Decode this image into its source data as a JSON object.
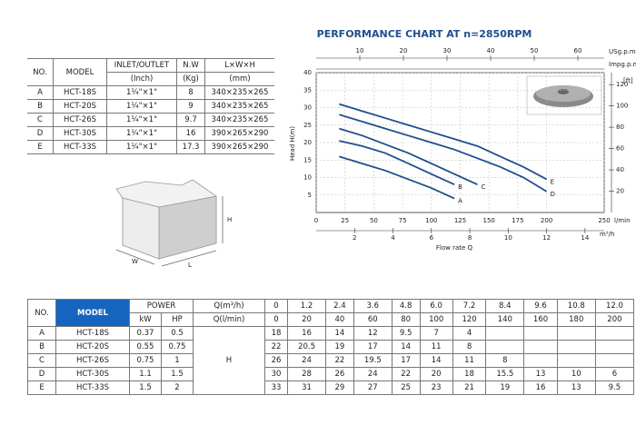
{
  "spec_table": {
    "headers": {
      "no": "NO.",
      "model": "MODEL",
      "inlet": "INLET/OUTLET",
      "inlet_unit": "(Inch)",
      "nw": "N.W",
      "nw_unit": "(Kg)",
      "dim": "L×W×H",
      "dim_unit": "(mm)"
    },
    "rows": [
      {
        "no": "A",
        "model": "HCT-18S",
        "inlet": "1¼\"×1\"",
        "nw": "8",
        "dim": "340×235×265"
      },
      {
        "no": "B",
        "model": "HCT-20S",
        "inlet": "1¼\"×1\"",
        "nw": "9",
        "dim": "340×235×265"
      },
      {
        "no": "C",
        "model": "HCT-26S",
        "inlet": "1¼\"×1\"",
        "nw": "9.7",
        "dim": "340×235×265"
      },
      {
        "no": "D",
        "model": "HCT-30S",
        "inlet": "1¼\"×1\"",
        "nw": "16",
        "dim": "390×265×290"
      },
      {
        "no": "E",
        "model": "HCT-33S",
        "inlet": "1¼\"×1\"",
        "nw": "17.3",
        "dim": "390×265×290"
      }
    ]
  },
  "box_labels": {
    "h": "H",
    "w": "W",
    "l": "L"
  },
  "chart_data": {
    "type": "line",
    "title": "PERFORMANCE CHART AT n=2850RPM",
    "y_label": "Head H(m)",
    "x_label": "Flow rate Q",
    "x_unit": "l/min",
    "x2_unit": "m³/h",
    "top_unit": "USg.p.m",
    "top2_unit": "Impg.p.m",
    "y2_unit": "[ft]",
    "xlim": [
      0,
      250
    ],
    "xticks": [
      0,
      25,
      50,
      75,
      100,
      125,
      150,
      175,
      200,
      250
    ],
    "ylim": [
      0,
      40
    ],
    "yticks": [
      5,
      10,
      15,
      20,
      25,
      30,
      35,
      40
    ],
    "x2lim": [
      0,
      15
    ],
    "x2ticks": [
      2,
      4,
      6,
      8,
      10,
      12,
      14
    ],
    "toplim": [
      0,
      66.04
    ],
    "topticks": [
      10,
      20,
      30,
      40,
      50,
      60
    ],
    "y2lim": [
      0,
      131.23
    ],
    "y2ticks": [
      20,
      40,
      60,
      80,
      100,
      120
    ],
    "grid": true,
    "color": "#1f4e8c",
    "x": [
      20,
      40,
      60,
      80,
      100,
      120,
      140,
      160,
      180,
      200
    ],
    "series": [
      {
        "name": "A",
        "values": [
          16,
          14,
          12,
          9.5,
          7,
          4,
          null,
          null,
          null,
          null
        ]
      },
      {
        "name": "B",
        "values": [
          20.5,
          19,
          17,
          14,
          11,
          8,
          null,
          null,
          null,
          null
        ]
      },
      {
        "name": "C",
        "values": [
          24,
          22,
          19.5,
          17,
          14,
          11,
          8,
          null,
          null,
          null
        ]
      },
      {
        "name": "D",
        "values": [
          28,
          26,
          24,
          22,
          20,
          18,
          15.5,
          13,
          10,
          6
        ]
      },
      {
        "name": "E",
        "values": [
          31,
          29,
          27,
          25,
          23,
          21,
          19,
          16,
          13,
          9.5
        ]
      }
    ]
  },
  "perf_table": {
    "headers": {
      "no": "NO.",
      "model": "MODEL",
      "power": "POWER",
      "kw": "kW",
      "hp": "HP",
      "q_m3h": "Q(m³/h)",
      "q_lmin": "Q(l/min)"
    },
    "q_m3h": [
      "0",
      "1.2",
      "2.4",
      "3.6",
      "4.8",
      "6.0",
      "7.2",
      "8.4",
      "9.6",
      "10.8",
      "12.0"
    ],
    "q_lmin": [
      "0",
      "20",
      "40",
      "60",
      "80",
      "100",
      "120",
      "140",
      "160",
      "180",
      "200"
    ],
    "head_symbol": "H",
    "rows": [
      {
        "no": "A",
        "model": "HCT-18S",
        "kw": "0.37",
        "hp": "0.5",
        "heads": [
          "18",
          "16",
          "14",
          "12",
          "9.5",
          "7",
          "4"
        ]
      },
      {
        "no": "B",
        "model": "HCT-20S",
        "kw": "0.55",
        "hp": "0.75",
        "heads": [
          "22",
          "20.5",
          "19",
          "17",
          "14",
          "11",
          "8"
        ]
      },
      {
        "no": "C",
        "model": "HCT-26S",
        "kw": "0.75",
        "hp": "1",
        "heads": [
          "26",
          "24",
          "22",
          "19.5",
          "17",
          "14",
          "11",
          "8"
        ]
      },
      {
        "no": "D",
        "model": "HCT-30S",
        "kw": "1.1",
        "hp": "1.5",
        "heads": [
          "30",
          "28",
          "26",
          "24",
          "22",
          "20",
          "18",
          "15.5",
          "13",
          "10",
          "6"
        ]
      },
      {
        "no": "E",
        "model": "HCT-33S",
        "kw": "1.5",
        "hp": "2",
        "heads": [
          "33",
          "31",
          "29",
          "27",
          "25",
          "23",
          "21",
          "19",
          "16",
          "13",
          "9.5"
        ]
      }
    ]
  }
}
